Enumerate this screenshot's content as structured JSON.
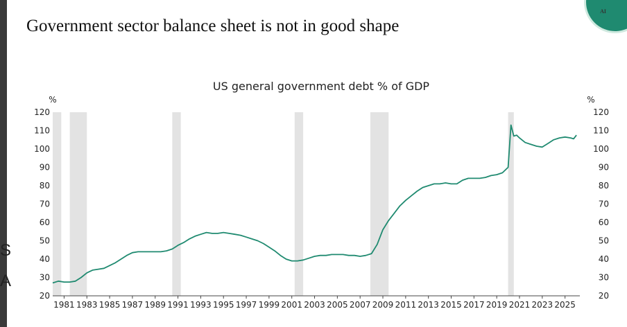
{
  "slide": {
    "title": "Government sector balance sheet is not in good shape",
    "corner_text": "AI",
    "left_ghost_letters": [
      "S",
      "A"
    ]
  },
  "colors": {
    "line": "#1f8a70",
    "recession": "#e3e3e3",
    "badge": "#1f8a70"
  },
  "chart_data": {
    "type": "line",
    "title": "US general government debt % of GDP",
    "ylabel_left": "%",
    "ylabel_right": "%",
    "ylim": [
      20,
      120
    ],
    "xlim": [
      1980.0,
      2026.3
    ],
    "yticks": [
      20,
      30,
      40,
      50,
      60,
      70,
      80,
      90,
      100,
      110,
      120
    ],
    "xticks": [
      1981,
      1983,
      1985,
      1987,
      1989,
      1991,
      1993,
      1995,
      1997,
      1999,
      2001,
      2003,
      2005,
      2007,
      2009,
      2011,
      2013,
      2015,
      2017,
      2019,
      2021,
      2023,
      2025
    ],
    "recessions": [
      [
        1980.0,
        1980.75
      ],
      [
        1981.5,
        1983.0
      ],
      [
        1990.5,
        1991.25
      ],
      [
        2001.25,
        2002.0
      ],
      [
        2007.9,
        2009.5
      ],
      [
        2020.0,
        2020.5
      ]
    ],
    "series": [
      {
        "name": "US general government debt % of GDP",
        "x": [
          1980.0,
          1980.5,
          1981.0,
          1981.5,
          1982.0,
          1982.5,
          1983.0,
          1983.5,
          1984.0,
          1984.5,
          1985.0,
          1985.5,
          1986.0,
          1986.5,
          1987.0,
          1987.5,
          1988.0,
          1988.5,
          1989.0,
          1989.5,
          1990.0,
          1990.5,
          1991.0,
          1991.5,
          1992.0,
          1992.5,
          1993.0,
          1993.5,
          1994.0,
          1994.5,
          1995.0,
          1995.5,
          1996.0,
          1996.5,
          1997.0,
          1997.5,
          1998.0,
          1998.5,
          1999.0,
          1999.5,
          2000.0,
          2000.5,
          2001.0,
          2001.5,
          2002.0,
          2002.5,
          2003.0,
          2003.5,
          2004.0,
          2004.5,
          2005.0,
          2005.5,
          2006.0,
          2006.5,
          2007.0,
          2007.5,
          2008.0,
          2008.5,
          2009.0,
          2009.5,
          2010.0,
          2010.5,
          2011.0,
          2011.5,
          2012.0,
          2012.5,
          2013.0,
          2013.5,
          2014.0,
          2014.5,
          2015.0,
          2015.5,
          2016.0,
          2016.5,
          2017.0,
          2017.5,
          2018.0,
          2018.5,
          2019.0,
          2019.5,
          2020.0,
          2020.25,
          2020.5,
          2020.75,
          2021.0,
          2021.5,
          2022.0,
          2022.5,
          2023.0,
          2023.5,
          2024.0,
          2024.5,
          2025.0,
          2025.5,
          2025.75,
          2026.0
        ],
        "values": [
          27.0,
          28.0,
          27.5,
          27.5,
          28.0,
          30.0,
          32.5,
          34.0,
          34.5,
          35.0,
          36.5,
          38.0,
          40.0,
          42.0,
          43.5,
          44.0,
          44.0,
          44.0,
          44.0,
          44.0,
          44.5,
          45.5,
          47.5,
          49.0,
          51.0,
          52.5,
          53.5,
          54.5,
          54.0,
          54.0,
          54.5,
          54.0,
          53.5,
          53.0,
          52.0,
          51.0,
          50.0,
          48.5,
          46.5,
          44.5,
          42.0,
          40.0,
          39.0,
          39.0,
          39.5,
          40.5,
          41.5,
          42.0,
          42.0,
          42.5,
          42.5,
          42.5,
          42.0,
          42.0,
          41.5,
          42.0,
          43.0,
          48.0,
          56.0,
          61.0,
          65.0,
          69.0,
          72.0,
          74.5,
          77.0,
          79.0,
          80.0,
          81.0,
          81.0,
          81.5,
          81.0,
          81.0,
          83.0,
          84.0,
          84.0,
          84.0,
          84.5,
          85.5,
          86.0,
          87.0,
          90.0,
          113.0,
          107.0,
          107.5,
          106.0,
          103.5,
          102.5,
          101.5,
          101.0,
          103.0,
          105.0,
          106.0,
          106.5,
          106.0,
          105.5,
          107.5
        ]
      }
    ]
  }
}
